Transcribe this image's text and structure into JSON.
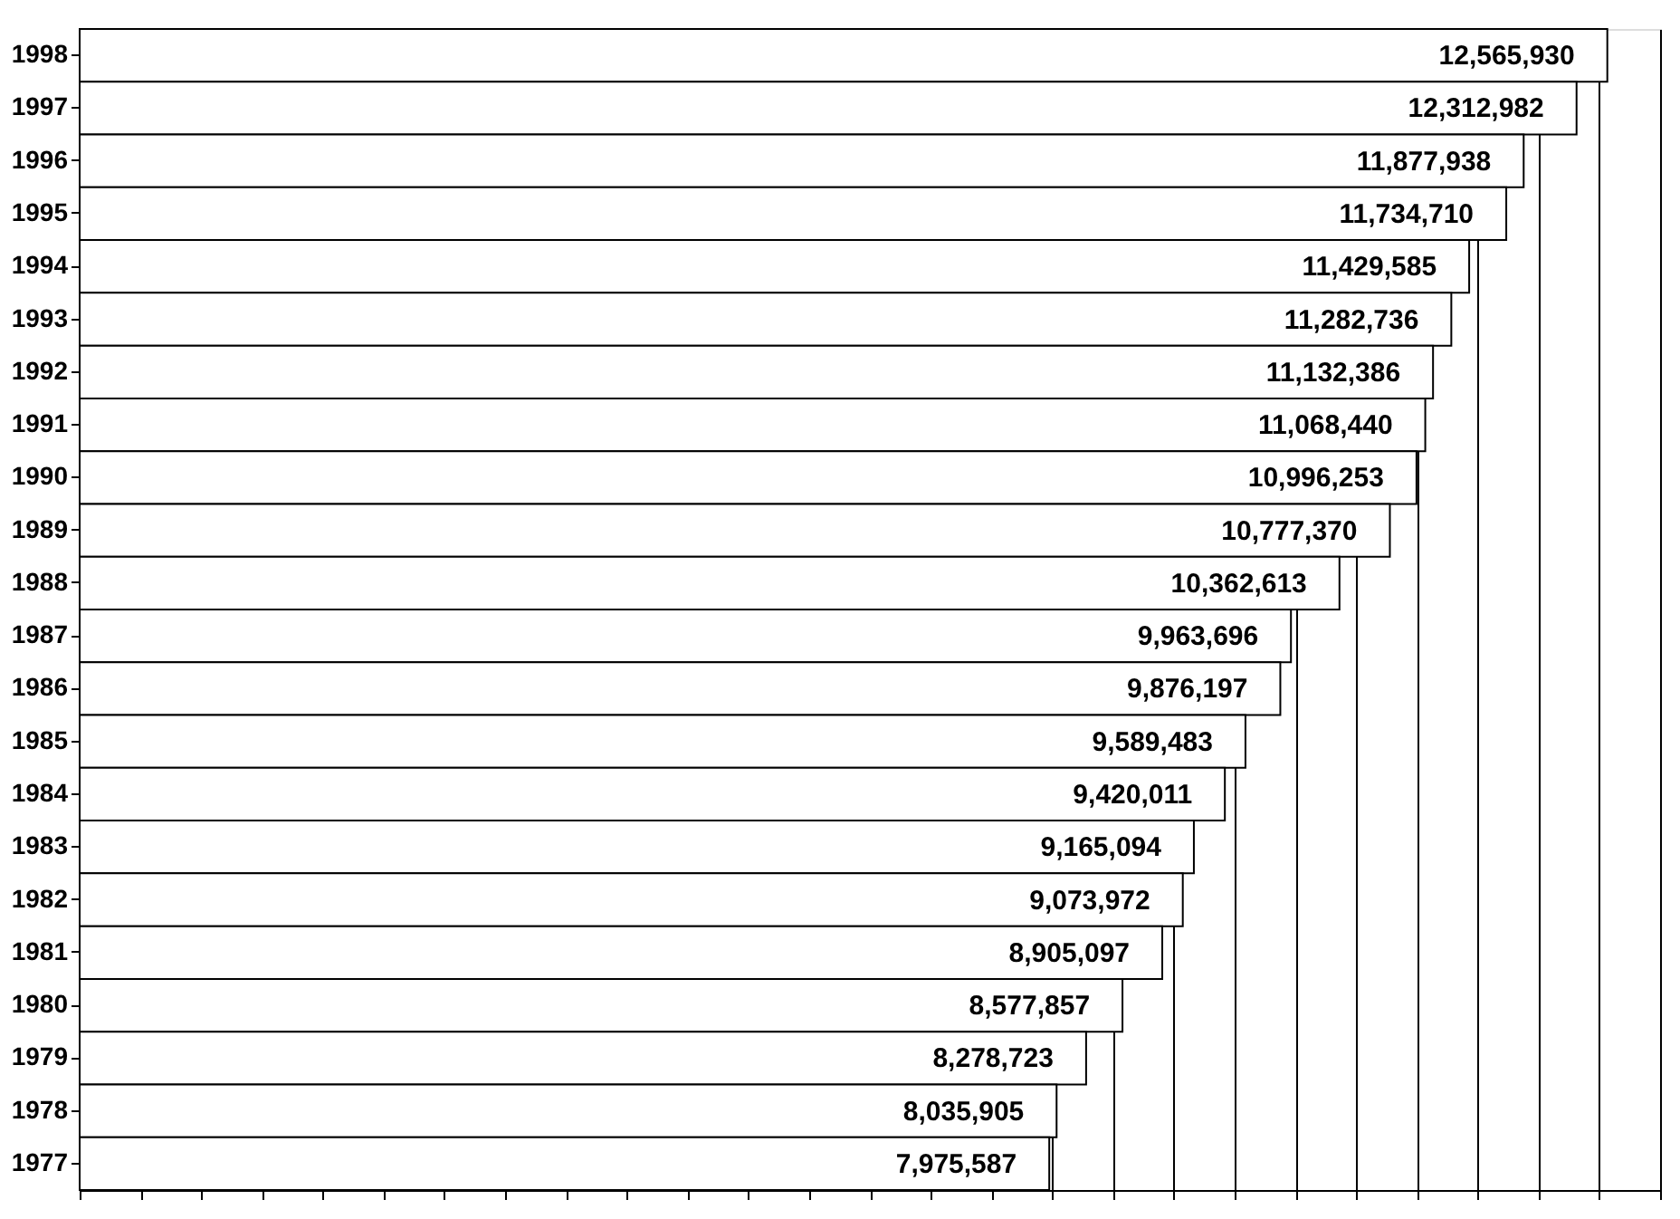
{
  "chart_data": {
    "type": "bar",
    "orientation": "horizontal",
    "categories": [
      "1998",
      "1997",
      "1996",
      "1995",
      "1994",
      "1993",
      "1992",
      "1991",
      "1990",
      "1989",
      "1988",
      "1987",
      "1986",
      "1985",
      "1984",
      "1983",
      "1982",
      "1981",
      "1980",
      "1979",
      "1978",
      "1977"
    ],
    "values": [
      12565930,
      12312982,
      11877938,
      11734710,
      11429585,
      11282736,
      11132386,
      11068440,
      10996253,
      10777370,
      10362613,
      9963696,
      9876197,
      9589483,
      9420011,
      9165094,
      9073972,
      8905097,
      8577857,
      8278723,
      8035905,
      7975587
    ],
    "value_labels": [
      "12,565,930",
      "12,312,982",
      "11,877,938",
      "11,734,710",
      "11,429,585",
      "11,282,736",
      "11,132,386",
      "11,068,440",
      "10,996,253",
      "10,777,370",
      "10,362,613",
      "9,963,696",
      "9,876,197",
      "9,589,483",
      "9,420,011",
      "9,165,094",
      "9,073,972",
      "8,905,097",
      "8,577,857",
      "8,278,723",
      "8,035,905",
      "7,975,587"
    ],
    "color": "#ffffff",
    "grid": "x",
    "tick_labels": "y"
  }
}
